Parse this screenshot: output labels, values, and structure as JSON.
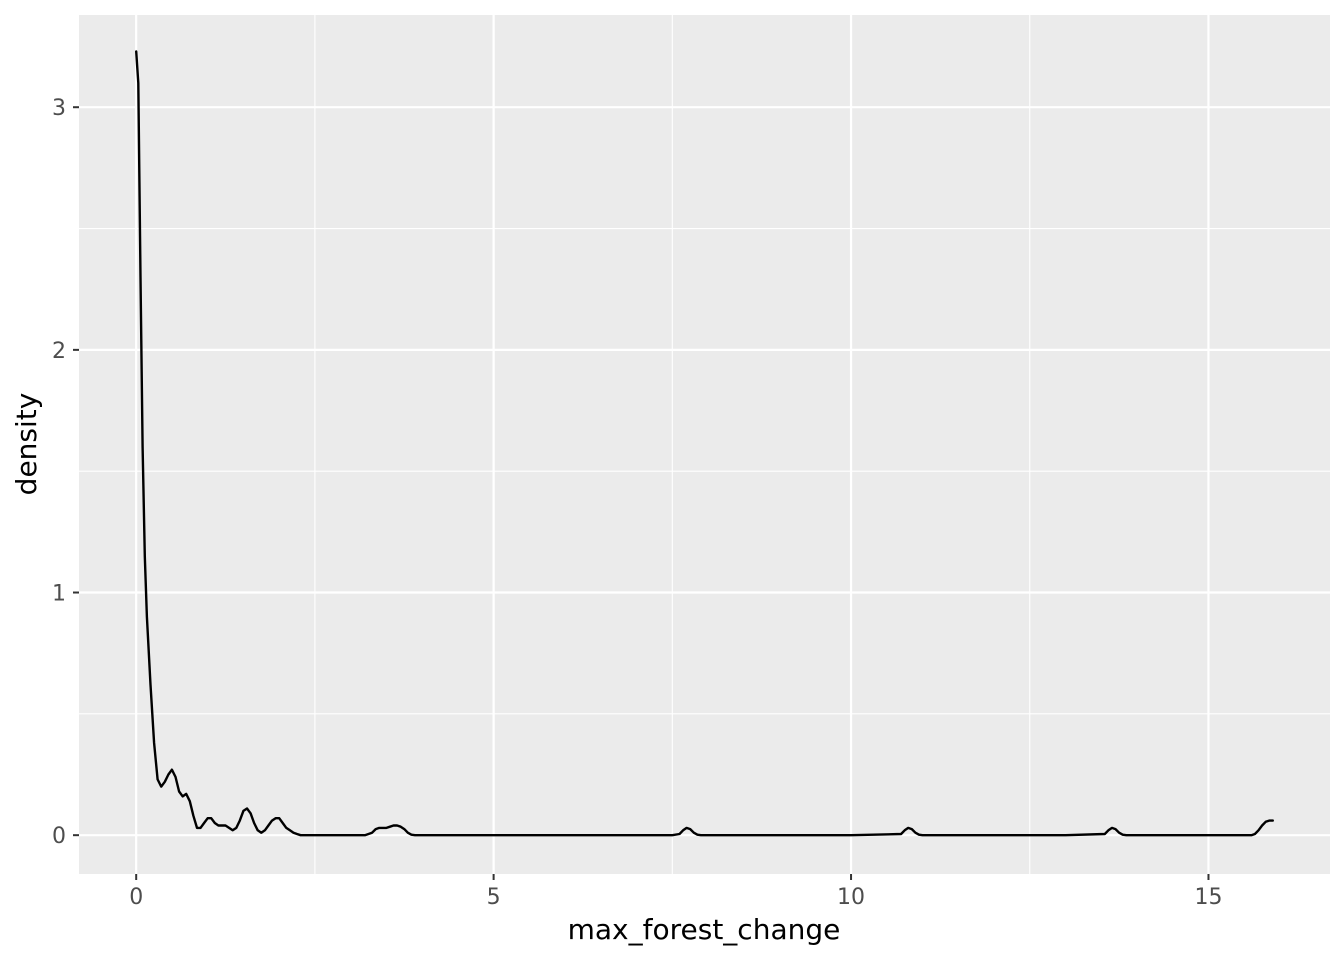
{
  "chart_data": {
    "type": "line",
    "xlabel": "max_forest_change",
    "ylabel": "density",
    "xlim": [
      -0.8,
      16.7
    ],
    "ylim": [
      -0.16,
      3.38
    ],
    "x_ticks": [
      0,
      5,
      10,
      15
    ],
    "x_minor": [
      2.5,
      7.5,
      12.5
    ],
    "y_ticks": [
      0,
      1,
      2,
      3
    ],
    "y_minor": [
      0.5,
      1.5,
      2.5
    ],
    "grid": true,
    "colors": {
      "panel": "#ebebeb",
      "grid": "#ffffff",
      "line": "#000000"
    },
    "series": [
      {
        "x": [
          0.0,
          0.03,
          0.06,
          0.09,
          0.12,
          0.15,
          0.2,
          0.25,
          0.3,
          0.35,
          0.4,
          0.45,
          0.5,
          0.55,
          0.6,
          0.65,
          0.7,
          0.75,
          0.8,
          0.85,
          0.9,
          0.95,
          1.0,
          1.05,
          1.1,
          1.15,
          1.2,
          1.25,
          1.3,
          1.35,
          1.4,
          1.45,
          1.5,
          1.55,
          1.6,
          1.65,
          1.7,
          1.75,
          1.8,
          1.85,
          1.9,
          1.95,
          2.0,
          2.05,
          2.1,
          2.15,
          2.2,
          2.25,
          2.3,
          2.35,
          2.4,
          2.45,
          2.5,
          2.55,
          2.6,
          2.65,
          2.7,
          2.75,
          2.8,
          2.9,
          3.0,
          3.1,
          3.2,
          3.3,
          3.35,
          3.4,
          3.45,
          3.5,
          3.55,
          3.6,
          3.65,
          3.7,
          3.75,
          3.8,
          3.85,
          3.9,
          4.0,
          5.0,
          6.0,
          7.0,
          7.5,
          7.6,
          7.65,
          7.7,
          7.75,
          7.8,
          7.85,
          7.9,
          7.95,
          8.0,
          9.0,
          10.0,
          10.7,
          10.75,
          10.8,
          10.85,
          10.9,
          10.95,
          11.0,
          11.05,
          11.1,
          11.15,
          12.0,
          13.0,
          13.55,
          13.6,
          13.65,
          13.7,
          13.75,
          13.8,
          13.85,
          13.9,
          13.95,
          14.0,
          15.0,
          15.6,
          15.65,
          15.7,
          15.75,
          15.8,
          15.85,
          15.9
        ],
        "y": [
          3.23,
          3.1,
          2.3,
          1.6,
          1.15,
          0.9,
          0.62,
          0.38,
          0.23,
          0.2,
          0.22,
          0.25,
          0.27,
          0.24,
          0.18,
          0.16,
          0.17,
          0.14,
          0.08,
          0.03,
          0.03,
          0.05,
          0.07,
          0.07,
          0.05,
          0.04,
          0.04,
          0.04,
          0.03,
          0.02,
          0.03,
          0.06,
          0.1,
          0.11,
          0.09,
          0.05,
          0.02,
          0.01,
          0.02,
          0.04,
          0.06,
          0.07,
          0.07,
          0.05,
          0.03,
          0.02,
          0.01,
          0.005,
          0.0,
          0.0,
          0.0,
          0.0,
          0.0,
          0.0,
          0.0,
          0.0,
          0.0,
          0.0,
          0.0,
          0.0,
          0.0,
          0.0,
          0.0,
          0.01,
          0.025,
          0.03,
          0.03,
          0.03,
          0.035,
          0.04,
          0.04,
          0.035,
          0.025,
          0.01,
          0.002,
          0.0,
          0.0,
          0.0,
          0.0,
          0.0,
          0.0,
          0.005,
          0.02,
          0.03,
          0.025,
          0.01,
          0.002,
          0.0,
          0.0,
          0.0,
          0.0,
          0.0,
          0.005,
          0.02,
          0.03,
          0.025,
          0.01,
          0.002,
          0.0,
          0.0,
          0.0,
          0.0,
          0.0,
          0.0,
          0.005,
          0.02,
          0.03,
          0.025,
          0.01,
          0.002,
          0.0,
          0.0,
          0.0,
          0.0,
          0.0,
          0.0,
          0.005,
          0.02,
          0.04,
          0.055,
          0.06,
          0.06
        ]
      }
    ]
  }
}
